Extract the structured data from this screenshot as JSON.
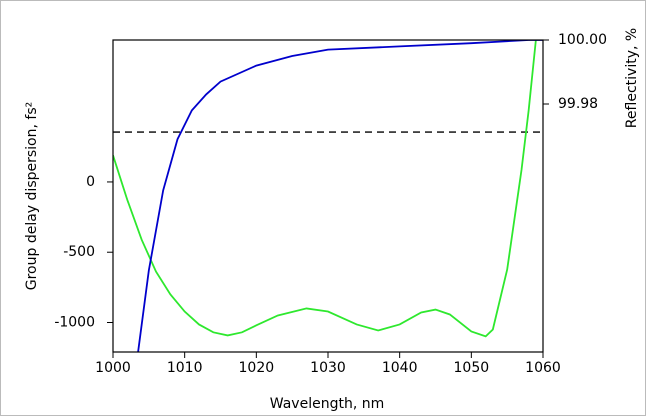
{
  "chart_data": {
    "type": "line",
    "xlabel": "Wavelength, nm",
    "ylabel": "Group delay dispersion, fs²",
    "y2label": "Reflectivity, %",
    "xlim": [
      1000,
      1060
    ],
    "xticks": [
      1000,
      1010,
      1020,
      1030,
      1040,
      1050,
      1060
    ],
    "ylim": [
      -1210,
      1010
    ],
    "yticks": [
      0,
      -500,
      -1000
    ],
    "y2lim": [
      99.9025,
      100.0
    ],
    "y2ticks": [
      {
        "value": 100.0,
        "label": "100.00"
      },
      {
        "value": 99.98,
        "label": "99.98"
      }
    ],
    "hline": 355,
    "series": [
      {
        "color": "#2ee82e",
        "axis": "y",
        "x": [
          1000,
          1002,
          1004,
          1006,
          1008,
          1010,
          1012,
          1014,
          1016,
          1018,
          1020,
          1023,
          1027,
          1030,
          1034,
          1037,
          1040,
          1043,
          1045,
          1047,
          1050,
          1052,
          1053,
          1055,
          1057,
          1058,
          1059
        ],
        "values": [
          190,
          -128,
          -411,
          -638,
          -800,
          -922,
          -1014,
          -1070,
          -1092,
          -1070,
          -1020,
          -950,
          -900,
          -922,
          -1014,
          -1057,
          -1014,
          -929,
          -908,
          -943,
          -1064,
          -1099,
          -1050,
          -624,
          85,
          510,
          1007
        ]
      },
      {
        "color": "#0000cc",
        "axis": "y2",
        "x": [
          1003.5,
          1005,
          1007,
          1009,
          1011,
          1013,
          1015,
          1020,
          1025,
          1030,
          1040,
          1050,
          1058,
          1060
        ],
        "values": [
          99.9025,
          99.928,
          99.953,
          99.969,
          99.978,
          99.983,
          99.987,
          99.992,
          99.995,
          99.997,
          99.998,
          99.999,
          100.0,
          100.0
        ]
      }
    ]
  }
}
